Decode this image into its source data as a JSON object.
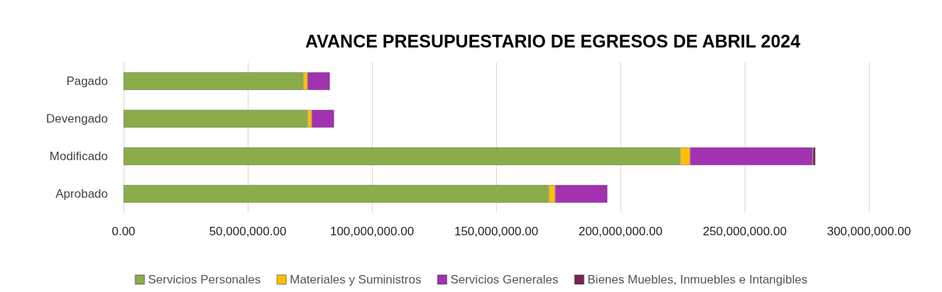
{
  "chart_data": {
    "type": "bar",
    "orientation": "horizontal",
    "stacked": true,
    "title": "AVANCE PRESUPUESTARIO DE EGRESOS DE ABRIL 2024",
    "categories": [
      "Pagado",
      "Devengado",
      "Modificado",
      "Aprobado"
    ],
    "series": [
      {
        "name": "Servicios Personales",
        "color": "#8aad4a",
        "values": [
          72300000,
          74000000,
          224000000,
          171100000
        ]
      },
      {
        "name": "Materiales y Suministros",
        "color": "#ffc000",
        "values": [
          1700000,
          1700000,
          4000000,
          2600000
        ]
      },
      {
        "name": "Servicios Generales",
        "color": "#a232b0",
        "values": [
          9100000,
          9100000,
          49400000,
          21100000
        ]
      },
      {
        "name": "Bienes Muebles, Inmuebles e Intangibles",
        "color": "#7a2350",
        "values": [
          null,
          null,
          1100000,
          null
        ]
      }
    ],
    "xlim": [
      0,
      300000000
    ],
    "xticks": [
      {
        "value": 0,
        "label": "0.00"
      },
      {
        "value": 50000000,
        "label": "50,000,000.00"
      },
      {
        "value": 100000000,
        "label": "100,000,000.00"
      },
      {
        "value": 150000000,
        "label": "150,000,000.00"
      },
      {
        "value": 200000000,
        "label": "200,000,000.00"
      },
      {
        "value": 250000000,
        "label": "250,000,000.00"
      },
      {
        "value": 300000000,
        "label": "300,000,000.00"
      }
    ],
    "grid": "x",
    "legend": "bottom"
  }
}
